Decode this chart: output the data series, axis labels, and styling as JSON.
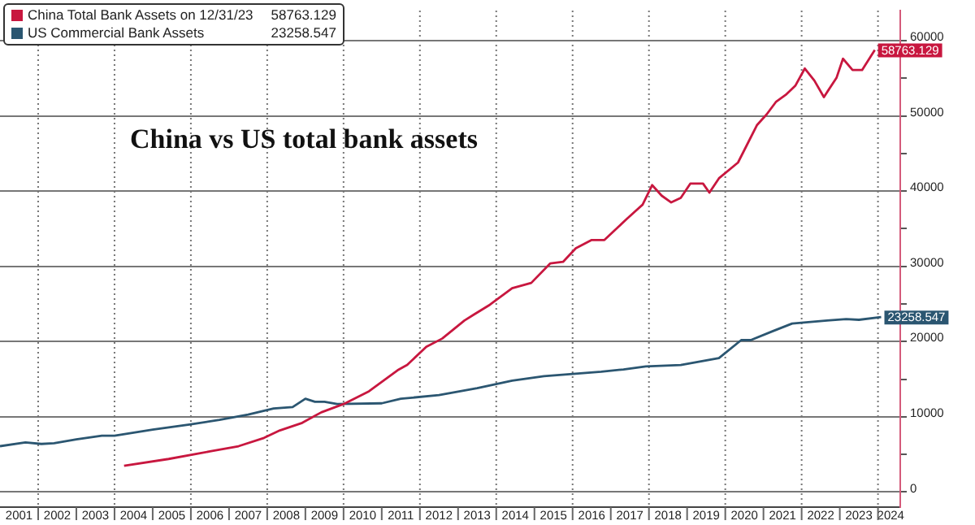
{
  "chart_data": {
    "type": "line",
    "annotations": [
      "China vs US total bank assets"
    ],
    "xlim": [
      "2001-01",
      "2024-08"
    ],
    "xticks": [
      {
        "value": "2001-07",
        "label": "2001"
      },
      {
        "value": "2002-07",
        "label": "2002"
      },
      {
        "value": "2003-07",
        "label": "2003"
      },
      {
        "value": "2004-07",
        "label": "2004"
      },
      {
        "value": "2005-07",
        "label": "2005"
      },
      {
        "value": "2006-07",
        "label": "2006"
      },
      {
        "value": "2007-07",
        "label": "2007"
      },
      {
        "value": "2008-07",
        "label": "2008"
      },
      {
        "value": "2009-07",
        "label": "2009"
      },
      {
        "value": "2010-07",
        "label": "2010"
      },
      {
        "value": "2011-07",
        "label": "2011"
      },
      {
        "value": "2012-07",
        "label": "2012"
      },
      {
        "value": "2013-07",
        "label": "2013"
      },
      {
        "value": "2014-07",
        "label": "2014"
      },
      {
        "value": "2015-07",
        "label": "2015"
      },
      {
        "value": "2016-07",
        "label": "2016"
      },
      {
        "value": "2017-07",
        "label": "2017"
      },
      {
        "value": "2018-07",
        "label": "2018"
      },
      {
        "value": "2019-07",
        "label": "2019"
      },
      {
        "value": "2020-07",
        "label": "2020"
      },
      {
        "value": "2021-07",
        "label": "2021"
      },
      {
        "value": "2022-07",
        "label": "2022"
      },
      {
        "value": "2023-07",
        "label": "2023"
      },
      {
        "value": "2024-05",
        "label": "2024"
      }
    ],
    "ylim": [
      -2000,
      64000
    ],
    "yticks": [
      0,
      {
        "value": 5000,
        "label": null
      },
      10000,
      {
        "value": 15000,
        "label": null
      },
      20000,
      {
        "value": 25000,
        "label": null
      },
      30000,
      {
        "value": 35000,
        "label": null
      },
      40000,
      {
        "value": 45000,
        "label": null
      },
      50000,
      {
        "value": 55000,
        "label": null
      },
      60000
    ],
    "grid": true,
    "legend": "top left",
    "marker": "none",
    "line_style": "solid",
    "series": [
      {
        "name": "China Total Bank Assets on 12/31/23",
        "color": "#c8173f",
        "x": [
          "2004-04",
          "2005-06",
          "2006-07",
          "2007-04",
          "2007-12",
          "2008-05",
          "2008-12",
          "2009-06",
          "2010-01",
          "2010-09",
          "2011-06",
          "2011-09",
          "2012-03",
          "2012-08",
          "2013-03",
          "2013-06",
          "2013-11",
          "2014-06",
          "2014-12",
          "2015-06",
          "2015-10",
          "2016-02",
          "2016-07",
          "2016-11",
          "2017-06",
          "2017-11",
          "2018-02",
          "2018-05",
          "2018-08",
          "2018-11",
          "2019-02",
          "2019-06",
          "2019-08",
          "2019-11",
          "2020-05",
          "2020-11",
          "2021-02",
          "2021-05",
          "2021-08",
          "2021-11",
          "2022-02",
          "2022-05",
          "2022-08",
          "2022-12",
          "2023-02",
          "2023-05",
          "2023-08",
          "2023-12"
        ],
        "values": [
          3500,
          4400,
          5400,
          6100,
          7200,
          8200,
          9200,
          10600,
          11700,
          13400,
          16200,
          16900,
          19300,
          20400,
          22800,
          23600,
          24900,
          27100,
          27800,
          30400,
          30600,
          32400,
          33500,
          33500,
          36300,
          38200,
          40800,
          39400,
          38500,
          39100,
          41000,
          41000,
          39800,
          41700,
          43800,
          48800,
          50200,
          51900,
          52800,
          54000,
          56300,
          54700,
          52500,
          55100,
          57600,
          56100,
          56100,
          58763.129
        ],
        "value_labels": [
          null,
          null,
          null,
          null,
          null,
          null,
          null,
          null,
          null,
          null,
          null,
          null,
          null,
          null,
          null,
          null,
          null,
          null,
          null,
          null,
          null,
          null,
          null,
          null,
          null,
          null,
          null,
          null,
          null,
          null,
          null,
          null,
          null,
          null,
          null,
          null,
          null,
          null,
          null,
          null,
          null,
          null,
          null,
          null,
          null,
          null,
          null,
          "58763.129"
        ]
      },
      {
        "name": "US Commercial Bank Assets",
        "color": "#2b5671",
        "x": [
          "2001-01",
          "2001-09",
          "2002-02",
          "2002-06",
          "2003-01",
          "2003-09",
          "2004-01",
          "2005-01",
          "2006-01",
          "2006-10",
          "2007-07",
          "2008-03",
          "2008-09",
          "2009-01",
          "2009-04",
          "2009-07",
          "2009-11",
          "2011-01",
          "2011-07",
          "2012-07",
          "2013-07",
          "2014-06",
          "2015-04",
          "2016-10",
          "2017-05",
          "2017-12",
          "2018-11",
          "2019-11",
          "2020-06",
          "2020-09",
          "2021-04",
          "2021-10",
          "2022-09",
          "2023-03",
          "2023-07",
          "2024-02"
        ],
        "values": [
          6100,
          6600,
          6400,
          6500,
          7000,
          7500,
          7500,
          8300,
          9000,
          9600,
          10300,
          11100,
          11300,
          12400,
          12000,
          12000,
          11700,
          11800,
          12400,
          12900,
          13800,
          14800,
          15400,
          16000,
          16300,
          16700,
          16900,
          17800,
          20200,
          20200,
          21400,
          22400,
          22800,
          23000,
          22900,
          23258.547
        ],
        "value_labels": [
          null,
          null,
          null,
          null,
          null,
          null,
          null,
          null,
          null,
          null,
          null,
          null,
          null,
          null,
          null,
          null,
          null,
          null,
          null,
          null,
          null,
          null,
          null,
          null,
          null,
          null,
          null,
          null,
          null,
          null,
          null,
          null,
          null,
          null,
          null,
          "23258.547"
        ]
      }
    ]
  }
}
